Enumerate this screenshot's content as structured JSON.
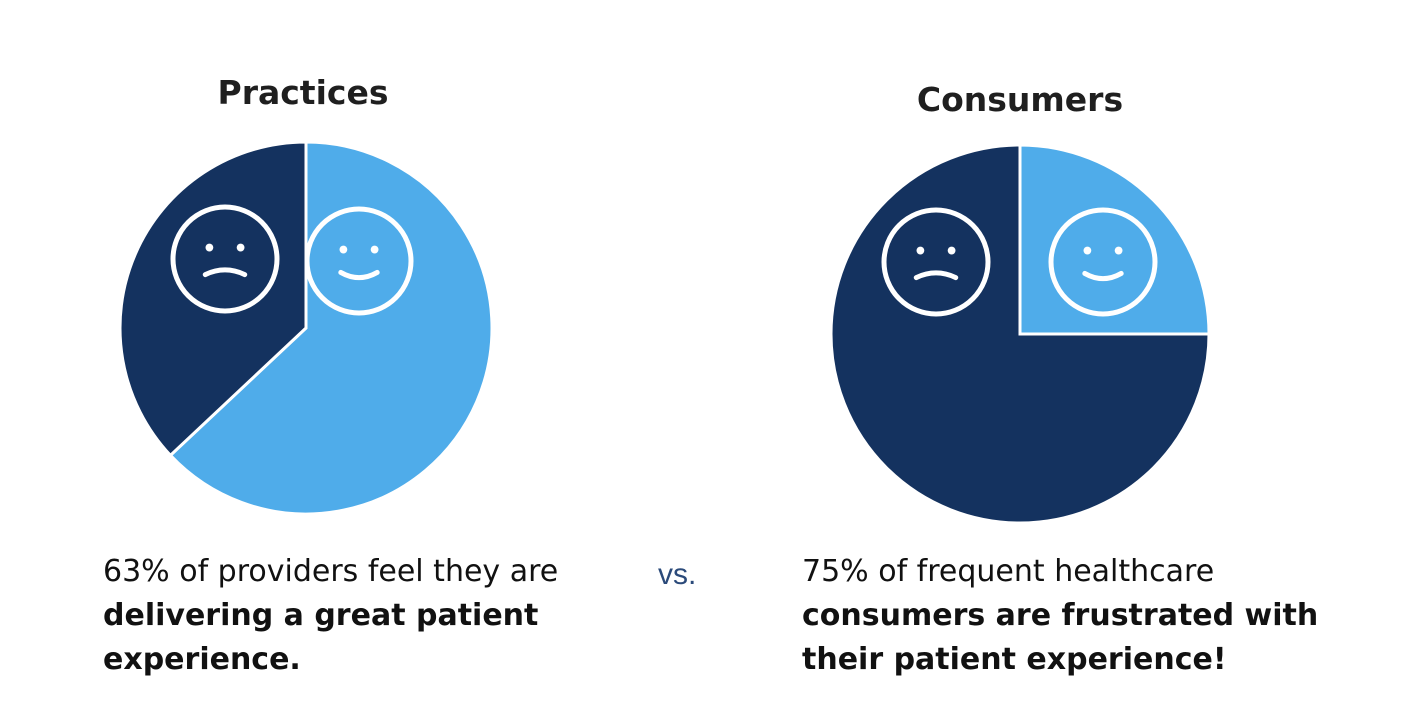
{
  "colors": {
    "dark": "#14325f",
    "light": "#4facea",
    "face_stroke": "#ffffff",
    "vs": "#2b4a7a"
  },
  "chart_data": [
    {
      "type": "pie",
      "title": "Practices",
      "slices": [
        {
          "label": "satisfied",
          "value": 63,
          "color": "#4facea",
          "icon": "smiley-face-icon"
        },
        {
          "label": "dissatisfied",
          "value": 37,
          "color": "#14325f",
          "icon": "sad-face-icon"
        }
      ]
    },
    {
      "type": "pie",
      "title": "Consumers",
      "slices": [
        {
          "label": "satisfied",
          "value": 25,
          "color": "#4facea",
          "icon": "smiley-face-icon"
        },
        {
          "label": "frustrated",
          "value": 75,
          "color": "#14325f",
          "icon": "sad-face-icon"
        }
      ]
    }
  ],
  "captions": {
    "practices": {
      "lead": "63% of providers feel they are",
      "strong": "delivering a great patient experience."
    },
    "consumers": {
      "lead": "75% of frequent healthcare",
      "strong": "consumers are frustrated with their patient experience!"
    }
  },
  "vs_label": "vs."
}
